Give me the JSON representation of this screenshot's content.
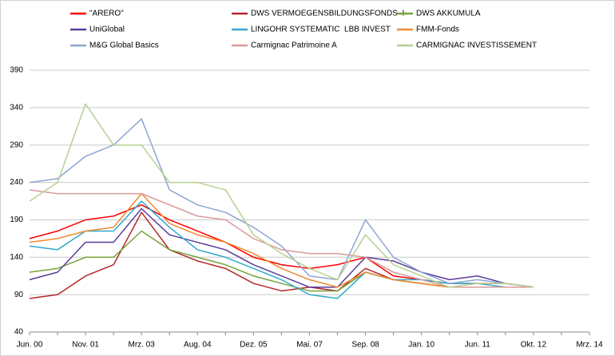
{
  "chart_data": {
    "type": "line",
    "grid": true,
    "categories": [
      "Jun. 00",
      null,
      "Nov. 01",
      null,
      "Mrz. 03",
      null,
      "Aug. 04",
      null,
      "Dez. 05",
      null,
      "Mai. 07",
      null,
      "Sep. 08",
      null,
      "Jan. 10",
      null,
      "Jun. 11",
      null,
      "Okt. 12",
      null,
      "Mrz. 14"
    ],
    "ylim": [
      40,
      390
    ],
    "yticks": [
      40,
      90,
      140,
      190,
      240,
      290,
      340,
      390
    ],
    "series": [
      {
        "name": "\"ARERO\"",
        "color": "#ff0000",
        "values": [
          165,
          175,
          190,
          195,
          210,
          190,
          175,
          160,
          140,
          130,
          125,
          130,
          140,
          115,
          110,
          105,
          105,
          105,
          100,
          null,
          null
        ]
      },
      {
        "name": "DWS VERMOEGENSBILDUNGSFONDS  I",
        "color": "#b3262a",
        "values": [
          85,
          90,
          115,
          130,
          200,
          150,
          135,
          125,
          105,
          95,
          100,
          95,
          125,
          110,
          105,
          100,
          100,
          100,
          100,
          null,
          null
        ]
      },
      {
        "name": "DWS AKKUMULA",
        "color": "#77a33a",
        "values": [
          120,
          125,
          140,
          140,
          175,
          150,
          140,
          130,
          115,
          105,
          95,
          95,
          120,
          110,
          105,
          100,
          100,
          100,
          100,
          null,
          null
        ]
      },
      {
        "name": "UniGlobal",
        "color": "#5b3c9a",
        "values": [
          110,
          120,
          160,
          160,
          205,
          170,
          160,
          150,
          130,
          115,
          100,
          100,
          140,
          135,
          120,
          110,
          115,
          105,
          100,
          null,
          null
        ]
      },
      {
        "name": "LINGOHR SYSTEMATIC  LBB INVEST",
        "color": "#2eaacc",
        "values": [
          155,
          150,
          175,
          175,
          215,
          180,
          150,
          140,
          125,
          110,
          90,
          85,
          120,
          110,
          110,
          105,
          105,
          100,
          100,
          null,
          null
        ]
      },
      {
        "name": "FMM-Fonds",
        "color": "#ef8a2f",
        "values": [
          160,
          165,
          175,
          180,
          225,
          185,
          170,
          160,
          145,
          125,
          110,
          100,
          120,
          110,
          105,
          100,
          100,
          100,
          100,
          null,
          null
        ]
      },
      {
        "name": "M&G Global Basics",
        "color": "#8da6d4",
        "values": [
          240,
          245,
          275,
          290,
          325,
          230,
          210,
          200,
          180,
          155,
          115,
          110,
          190,
          140,
          120,
          105,
          110,
          105,
          100,
          null,
          null
        ]
      },
      {
        "name": "Carmignac Patrimoine A",
        "color": "#d9999a",
        "values": [
          230,
          225,
          225,
          225,
          225,
          210,
          195,
          190,
          165,
          150,
          145,
          145,
          140,
          120,
          110,
          100,
          100,
          100,
          100,
          null,
          null
        ]
      },
      {
        "name": "CARMIGNAC INVESTISSEMENT",
        "color": "#b7d08f",
        "values": [
          215,
          240,
          345,
          290,
          290,
          240,
          240,
          230,
          170,
          145,
          125,
          110,
          170,
          130,
          115,
          100,
          105,
          105,
          100,
          null,
          null
        ]
      }
    ]
  }
}
